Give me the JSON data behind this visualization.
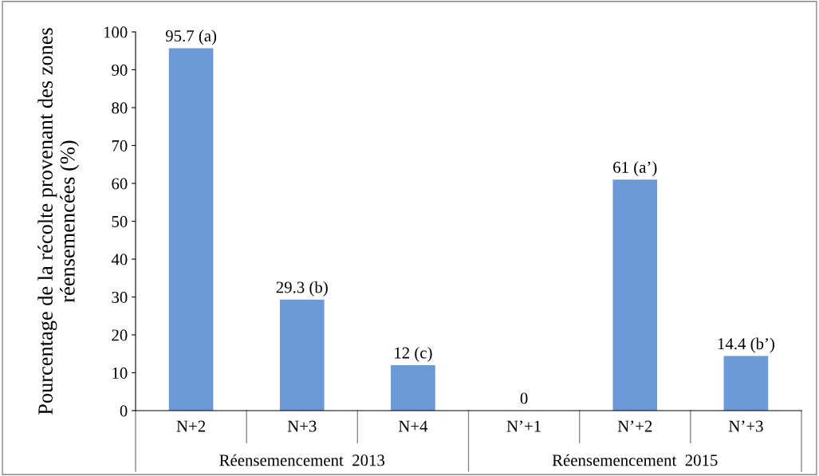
{
  "chart_data": {
    "type": "bar",
    "ylabel": "Pourcentage de la récolte provenant des zones réensemencées (%)",
    "categories": [
      "N+2",
      "N+3",
      "N+4",
      "N’+1",
      "N’+2",
      "N’+3"
    ],
    "values": [
      95.7,
      29.3,
      12,
      0,
      61,
      14.4
    ],
    "value_labels": [
      "95.7 (a)",
      "29.3 (b)",
      "12 (c)",
      "0",
      "61 (a’)",
      "14.4 (b’)"
    ],
    "color": "#6c9ad6",
    "ylim": [
      0,
      100
    ],
    "yticks": [
      0,
      10,
      20,
      30,
      40,
      50,
      60,
      70,
      80,
      90,
      100
    ],
    "grid": false,
    "annotations": [
      "Réensemencement  2013",
      "Réensemencement  2015"
    ]
  }
}
